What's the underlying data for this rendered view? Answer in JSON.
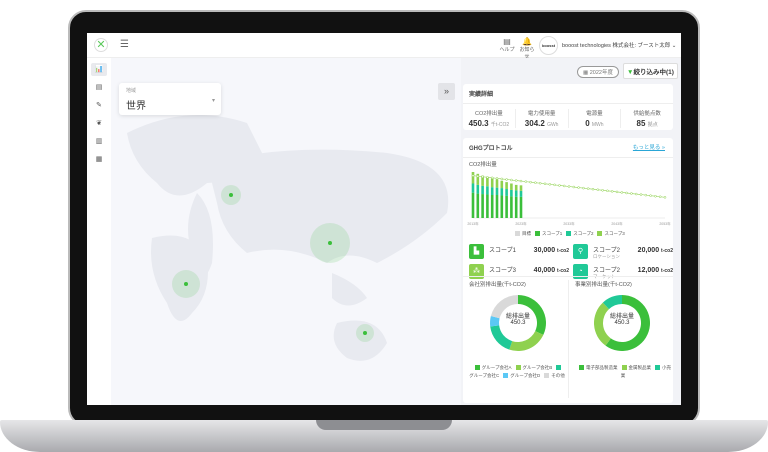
{
  "header": {
    "menu_icon": "hamburger-icon",
    "help": "ヘルプ",
    "notice": "お知らせ",
    "avatar": "boosst",
    "user": "booost technologies 株式会社: ブースト太郎"
  },
  "sidebar": {
    "items": [
      {
        "icon": "chart-icon",
        "glyph": "📊"
      },
      {
        "icon": "database-icon",
        "glyph": "▤"
      },
      {
        "icon": "pen-icon",
        "glyph": "✎"
      },
      {
        "icon": "leaf-icon",
        "glyph": "❦"
      },
      {
        "icon": "document-icon",
        "glyph": "▥"
      },
      {
        "icon": "report-icon",
        "glyph": "▦"
      }
    ]
  },
  "region": {
    "label": "地域",
    "value": "世界"
  },
  "map": {
    "points": [
      {
        "x": 231,
        "y": 195,
        "r": 10
      },
      {
        "x": 330,
        "y": 243,
        "r": 20
      },
      {
        "x": 186,
        "y": 284,
        "r": 14
      },
      {
        "x": 365,
        "y": 333,
        "r": 9
      }
    ],
    "dot_color": "#3bbf3b"
  },
  "filter": {
    "year": "2022年度",
    "label": "絞り込み中(1)"
  },
  "summary": {
    "title": "実績詳細",
    "kpis": [
      {
        "name": "CO2排出量",
        "value": "450.3",
        "unit": "千t-CO2"
      },
      {
        "name": "電力使用量",
        "value": "304.2",
        "unit": "GWh"
      },
      {
        "name": "電源量",
        "value": "0",
        "unit": "MWh"
      },
      {
        "name": "供給拠点数",
        "value": "85",
        "unit": "拠点"
      }
    ]
  },
  "ghg": {
    "title": "GHGプロトコル",
    "more": "もっと見る »",
    "chart_title": "CO2排出量",
    "scopes": [
      {
        "name": "スコープ1",
        "sub": "",
        "value": "30,000",
        "unit": "t-co2",
        "color": "#3bbf3b",
        "glyph": "▙"
      },
      {
        "name": "スコープ2",
        "sub": "ロケーション",
        "value": "20,000",
        "unit": "t-co2",
        "color": "#20c997",
        "glyph": "⚲"
      },
      {
        "name": "スコープ3",
        "sub": "",
        "value": "40,000",
        "unit": "t-co2",
        "color": "#8fd14f",
        "glyph": "⁂"
      },
      {
        "name": "スコープ2",
        "sub": "マーケット",
        "value": "12,000",
        "unit": "t-co2",
        "color": "#20c997",
        "glyph": "◔"
      }
    ]
  },
  "chart_data": [
    {
      "type": "bar",
      "title": "CO2排出量",
      "x_ticks": [
        "2013年",
        "2023年",
        "2033年",
        "2043年",
        "2053年"
      ],
      "categories": [
        2013,
        2014,
        2015,
        2016,
        2017,
        2018,
        2019,
        2020,
        2021,
        2022,
        2023
      ],
      "series": [
        {
          "name": "スコープ1",
          "color": "#3bbf3b",
          "values": [
            55,
            53,
            52,
            51,
            50,
            50,
            49,
            48,
            47,
            46,
            46
          ]
        },
        {
          "name": "スコープ2",
          "color": "#20c997",
          "values": [
            20,
            19,
            18,
            18,
            17,
            16,
            16,
            15,
            14,
            14,
            13
          ]
        },
        {
          "name": "スコープ3",
          "color": "#8fd14f",
          "values": [
            25,
            24,
            22,
            20,
            19,
            18,
            16,
            15,
            14,
            12,
            12
          ]
        }
      ],
      "target": {
        "name": "目標",
        "color": "#3bbf3b",
        "start": [
          2013,
          92
        ],
        "end": [
          2053,
          45
        ]
      },
      "legend": [
        "目標",
        "スコープ1",
        "スコープ2",
        "スコープ3"
      ]
    },
    {
      "type": "pie",
      "title": "会社別排出量(千t-CO2)",
      "center_label": "総排出量",
      "center_value": "450.3",
      "slices": [
        {
          "name": "グループ会社A",
          "value": 32,
          "color": "#3bbf3b"
        },
        {
          "name": "グループ会社B",
          "value": 23,
          "color": "#8fd14f"
        },
        {
          "name": "グループ会社C",
          "value": 18,
          "color": "#20c997"
        },
        {
          "name": "グループ会社D",
          "value": 6,
          "color": "#5bc8f5"
        },
        {
          "name": "その他",
          "value": 21,
          "color": "#d9d9d9"
        }
      ]
    },
    {
      "type": "pie",
      "title": "事業別排出量(千t-CO2)",
      "center_label": "総排出量",
      "center_value": "450.3",
      "slices": [
        {
          "name": "電子部品製造業",
          "value": 60,
          "color": "#3bbf3b"
        },
        {
          "name": "金属製品業",
          "value": 28,
          "color": "#8fd14f"
        },
        {
          "name": "小売業",
          "value": 12,
          "color": "#20c997"
        }
      ]
    }
  ]
}
